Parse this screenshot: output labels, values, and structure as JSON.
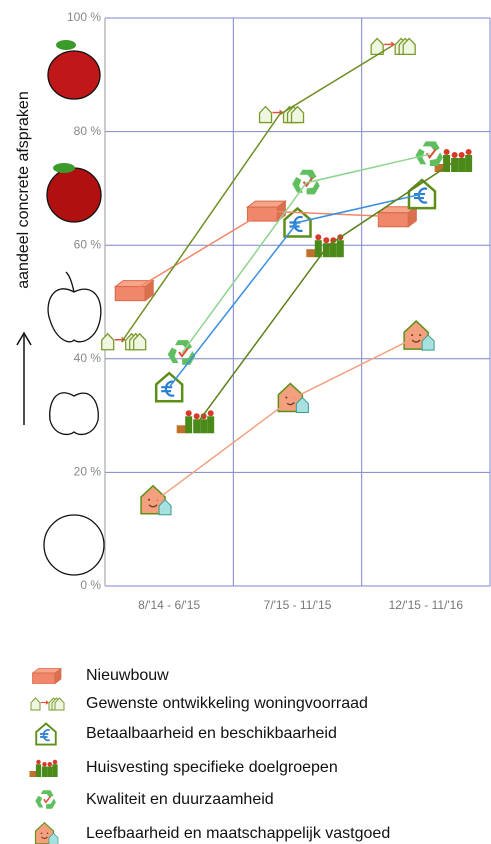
{
  "chart_data": {
    "type": "line",
    "ylabel": "aandeel concrete afspraken",
    "categories": [
      "8/'14 - 6/'15",
      "7/'15 - 11/'15",
      "12/'15 - 11/'16"
    ],
    "ylim": [
      0,
      100
    ],
    "yticks": [
      {
        "value": 0,
        "label": "0 %"
      },
      {
        "value": 20,
        "label": "20 %"
      },
      {
        "value": 40,
        "label": "40 %"
      },
      {
        "value": 60,
        "label": "60 %"
      },
      {
        "value": 80,
        "label": "80 %"
      },
      {
        "value": 100,
        "label": "100 %"
      }
    ],
    "grid": true,
    "series": [
      {
        "name": "Nieuwbouw",
        "color": "#f0866a",
        "marker": "brick",
        "values": [
          52,
          66,
          65
        ]
      },
      {
        "name": "Gewenste ontwikkeling woningvoorraad",
        "color": "#6e8f22",
        "marker": "houses",
        "values": [
          43,
          83,
          95
        ]
      },
      {
        "name": "Betaalbaarheid en beschikbaarheid",
        "color": "#3a8fe0",
        "marker": "euro",
        "values": [
          35,
          64,
          69
        ]
      },
      {
        "name": "Huisvesting specifieke doelgroepen",
        "color": "#5d7f18",
        "marker": "people",
        "values": [
          29,
          60,
          75
        ]
      },
      {
        "name": "Kwaliteit en duurzaamheid",
        "color": "#8fd48f",
        "marker": "recycle",
        "values": [
          41,
          71,
          76
        ]
      },
      {
        "name": "Leefbaarheid en maatschappelijk vastgoed",
        "color": "#f2a07e",
        "marker": "face",
        "values": [
          15,
          33,
          44
        ]
      }
    ]
  }
}
